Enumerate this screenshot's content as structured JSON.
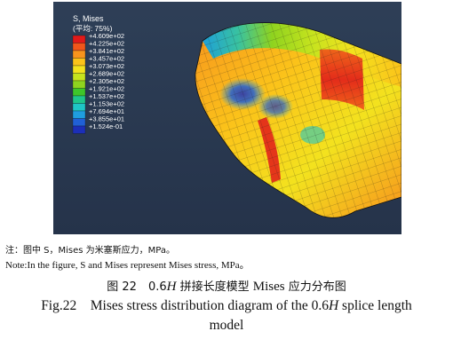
{
  "figure": {
    "legend": {
      "title": "S, Mises",
      "subtitle": "(平均: 75%)",
      "colors": [
        "#e11a1a",
        "#f0561a",
        "#f7941d",
        "#fbc31a",
        "#f3e21e",
        "#c6e31e",
        "#8fd31f",
        "#3ec72a",
        "#1fc78c",
        "#1fc6c6",
        "#1f9ee0",
        "#2060d6",
        "#1c2fb8"
      ],
      "values": [
        "+4.609e+02",
        "+4.225e+02",
        "+3.841e+02",
        "+3.457e+02",
        "+3.073e+02",
        "+2.689e+02",
        "+2.305e+02",
        "+1.921e+02",
        "+1.537e+02",
        "+1.153e+02",
        "+7.694e+01",
        "+3.855e+01",
        "+1.524e-01"
      ]
    },
    "background_color": "#2b3a50"
  },
  "note": {
    "zh": "注：图中 S，Mises 为米塞斯应力，MPa。",
    "en": "Note:In the figure, S and Mises represent Mises stress, MPa。"
  },
  "caption": {
    "zh_prefix": "图 22　0.6",
    "zh_var": "H",
    "zh_suffix": " 拼接长度模型 ",
    "zh_latin": "Mises",
    "zh_end": " 应力分布图",
    "en_prefix": "Fig.22　Mises stress distribution diagram of the 0.6",
    "en_var": "H",
    "en_suffix": " splice length",
    "en_line2": "model"
  }
}
